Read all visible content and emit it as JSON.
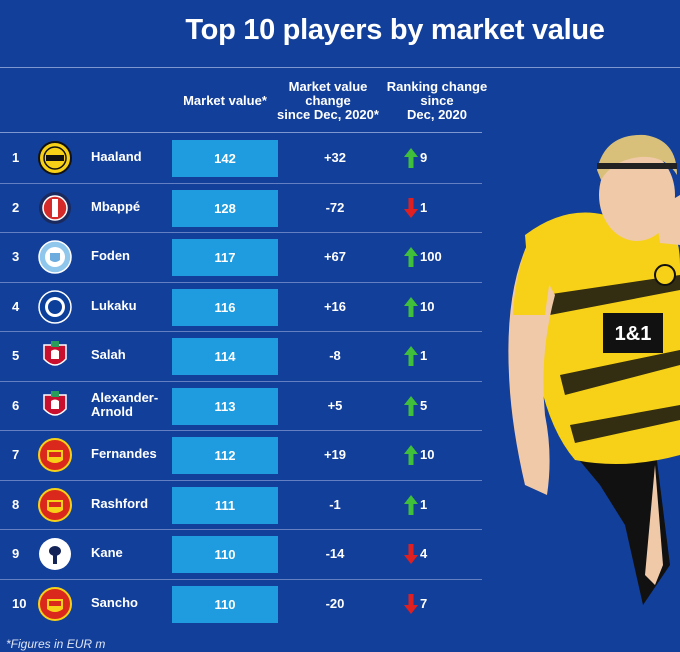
{
  "title": "Top 10 players by market value",
  "headers": {
    "market_value": "Market value*",
    "mv_change_1": "Market value",
    "mv_change_2": "change",
    "mv_change_3": "since Dec, 2020*",
    "rank_change_1": "Ranking change",
    "rank_change_2": "since",
    "rank_change_3": "Dec, 2020"
  },
  "rows": [
    {
      "rank": "1",
      "club": "Borussia Dortmund",
      "player_line1": "Haaland",
      "player_line2": "",
      "market_value": "142",
      "value_change": "+32",
      "direction": "up",
      "ranking_change": "9"
    },
    {
      "rank": "2",
      "club": "Paris Saint-Germain",
      "player_line1": "Mbappé",
      "player_line2": "",
      "market_value": "128",
      "value_change": "-72",
      "direction": "down",
      "ranking_change": "1"
    },
    {
      "rank": "3",
      "club": "Manchester City",
      "player_line1": "Foden",
      "player_line2": "",
      "market_value": "117",
      "value_change": "+67",
      "direction": "up",
      "ranking_change": "100"
    },
    {
      "rank": "4",
      "club": "Chelsea",
      "player_line1": "Lukaku",
      "player_line2": "",
      "market_value": "116",
      "value_change": "+16",
      "direction": "up",
      "ranking_change": "10"
    },
    {
      "rank": "5",
      "club": "Liverpool",
      "player_line1": "Salah",
      "player_line2": "",
      "market_value": "114",
      "value_change": "-8",
      "direction": "up",
      "ranking_change": "1"
    },
    {
      "rank": "6",
      "club": "Liverpool",
      "player_line1": "Alexander-",
      "player_line2": "Arnold",
      "market_value": "113",
      "value_change": "+5",
      "direction": "up",
      "ranking_change": "5"
    },
    {
      "rank": "7",
      "club": "Manchester United",
      "player_line1": "Fernandes",
      "player_line2": "",
      "market_value": "112",
      "value_change": "+19",
      "direction": "up",
      "ranking_change": "10"
    },
    {
      "rank": "8",
      "club": "Manchester United",
      "player_line1": "Rashford",
      "player_line2": "",
      "market_value": "111",
      "value_change": "-1",
      "direction": "up",
      "ranking_change": "1"
    },
    {
      "rank": "9",
      "club": "Tottenham Hotspur",
      "player_line1": "Kane",
      "player_line2": "",
      "market_value": "110",
      "value_change": "-14",
      "direction": "down",
      "ranking_change": "4"
    },
    {
      "rank": "10",
      "club": "Manchester United",
      "player_line1": "Sancho",
      "player_line2": "",
      "market_value": "110",
      "value_change": "-20",
      "direction": "down",
      "ranking_change": "7"
    }
  ],
  "shirt": {
    "sponsor": "1&1"
  },
  "footnote": "*Figures in EUR m",
  "colors": {
    "background": "#123f9a",
    "bar": "#1f9be0",
    "up": "#3fbf3a",
    "down": "#e02020",
    "kit": "#f7d117"
  }
}
